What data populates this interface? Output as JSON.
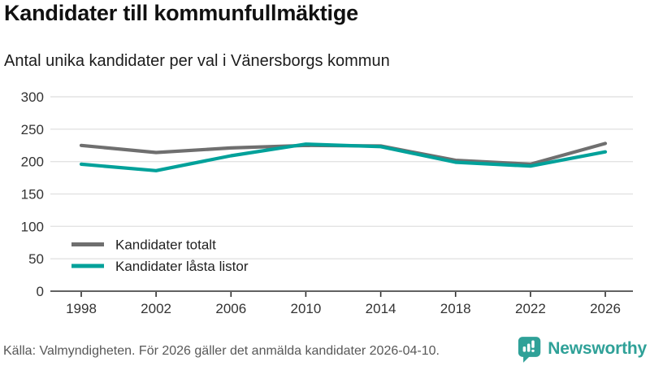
{
  "chart_data": {
    "type": "line",
    "title": "Kandidater till kommunfullmäktige",
    "subtitle": "Antal unika kandidater per val i Vänersborgs kommun",
    "x": [
      1998,
      2002,
      2006,
      2010,
      2014,
      2018,
      2022,
      2026
    ],
    "series": [
      {
        "name": "Kandidater totalt",
        "color": "#6F6F6F",
        "values": [
          225,
          214,
          221,
          225,
          224,
          202,
          196,
          228
        ]
      },
      {
        "name": "Kandidater låsta listor",
        "color": "#00A19A",
        "values": [
          196,
          186,
          209,
          227,
          223,
          199,
          193,
          215
        ]
      }
    ],
    "ylim": [
      0,
      300
    ],
    "yticks": [
      0,
      50,
      100,
      150,
      200,
      250,
      300
    ],
    "xlabel": "",
    "ylabel": "",
    "grid": "horizontal",
    "legend_position": "inside-bottom-left",
    "axis_color": "#2E2E2E",
    "gridline_color": "#E3E3E3",
    "tick_label_color": "#333333",
    "legend_label_color": "#222222"
  },
  "footer": {
    "source": "Källa: Valmyndigheten. För 2026 gäller det anmälda kandidater 2026-04-10.",
    "logo": {
      "text": "Newsworthy",
      "icon": "newsworthy-speech-bubble-bar-chart-icon",
      "color": "#2FA198"
    }
  }
}
